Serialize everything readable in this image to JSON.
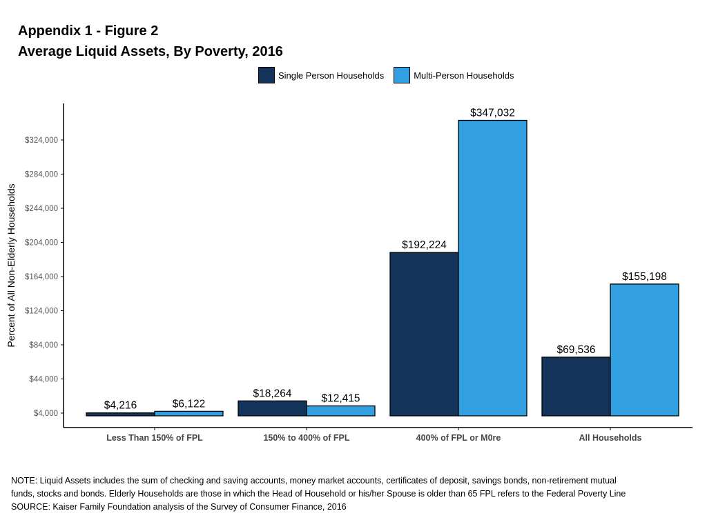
{
  "title": {
    "line1": "Appendix 1 - Figure 2",
    "line2": "Average Liquid Assets, By Poverty, 2016"
  },
  "legend": [
    {
      "name": "Single Person Households",
      "color": "#14335a"
    },
    {
      "name": "Multi-Person Households",
      "color": "#32a0e0"
    }
  ],
  "chart_data": {
    "type": "bar",
    "categories": [
      "Less Than 150% of FPL",
      "150% to 400% of FPL",
      "400% of FPL or M0re",
      "All Households"
    ],
    "series": [
      {
        "name": "Single Person Households",
        "values": [
          4216,
          18264,
          192224,
          69536
        ],
        "labels": [
          "$4,216",
          "$18,264",
          "$192,224",
          "$69,536"
        ],
        "color": "#14335a"
      },
      {
        "name": "Multi-Person Households",
        "values": [
          6122,
          12415,
          347032,
          155198
        ],
        "labels": [
          "$6,122",
          "$12,415",
          "$347,032",
          "$155,198"
        ],
        "color": "#32a0e0"
      }
    ],
    "ylabel": "Percent of All Non-Elderly Households",
    "xlabel": "",
    "yticks": [
      4000,
      44000,
      84000,
      124000,
      164000,
      204000,
      244000,
      284000,
      324000
    ],
    "ytick_labels": [
      "$4,000",
      "$44,000",
      "$84,000",
      "$124,000",
      "$164,000",
      "$204,000",
      "$244,000",
      "$284,000",
      "$324,000"
    ],
    "ylim": [
      0,
      365000
    ],
    "grid": false,
    "legend_position": "top-center"
  },
  "notes": {
    "note": "NOTE: Liquid Assets includes the sum of checking and saving accounts, money market accounts, certificates of deposit, savings bonds, non-retirement mutual funds, stocks and bonds.  Elderly Households are those in which the Head of Household or his/her Spouse is older than 65 FPL refers to the Federal Poverty Line",
    "source": "SOURCE: Kaiser Family Foundation analysis of the Survey of Consumer Finance, 2016"
  }
}
